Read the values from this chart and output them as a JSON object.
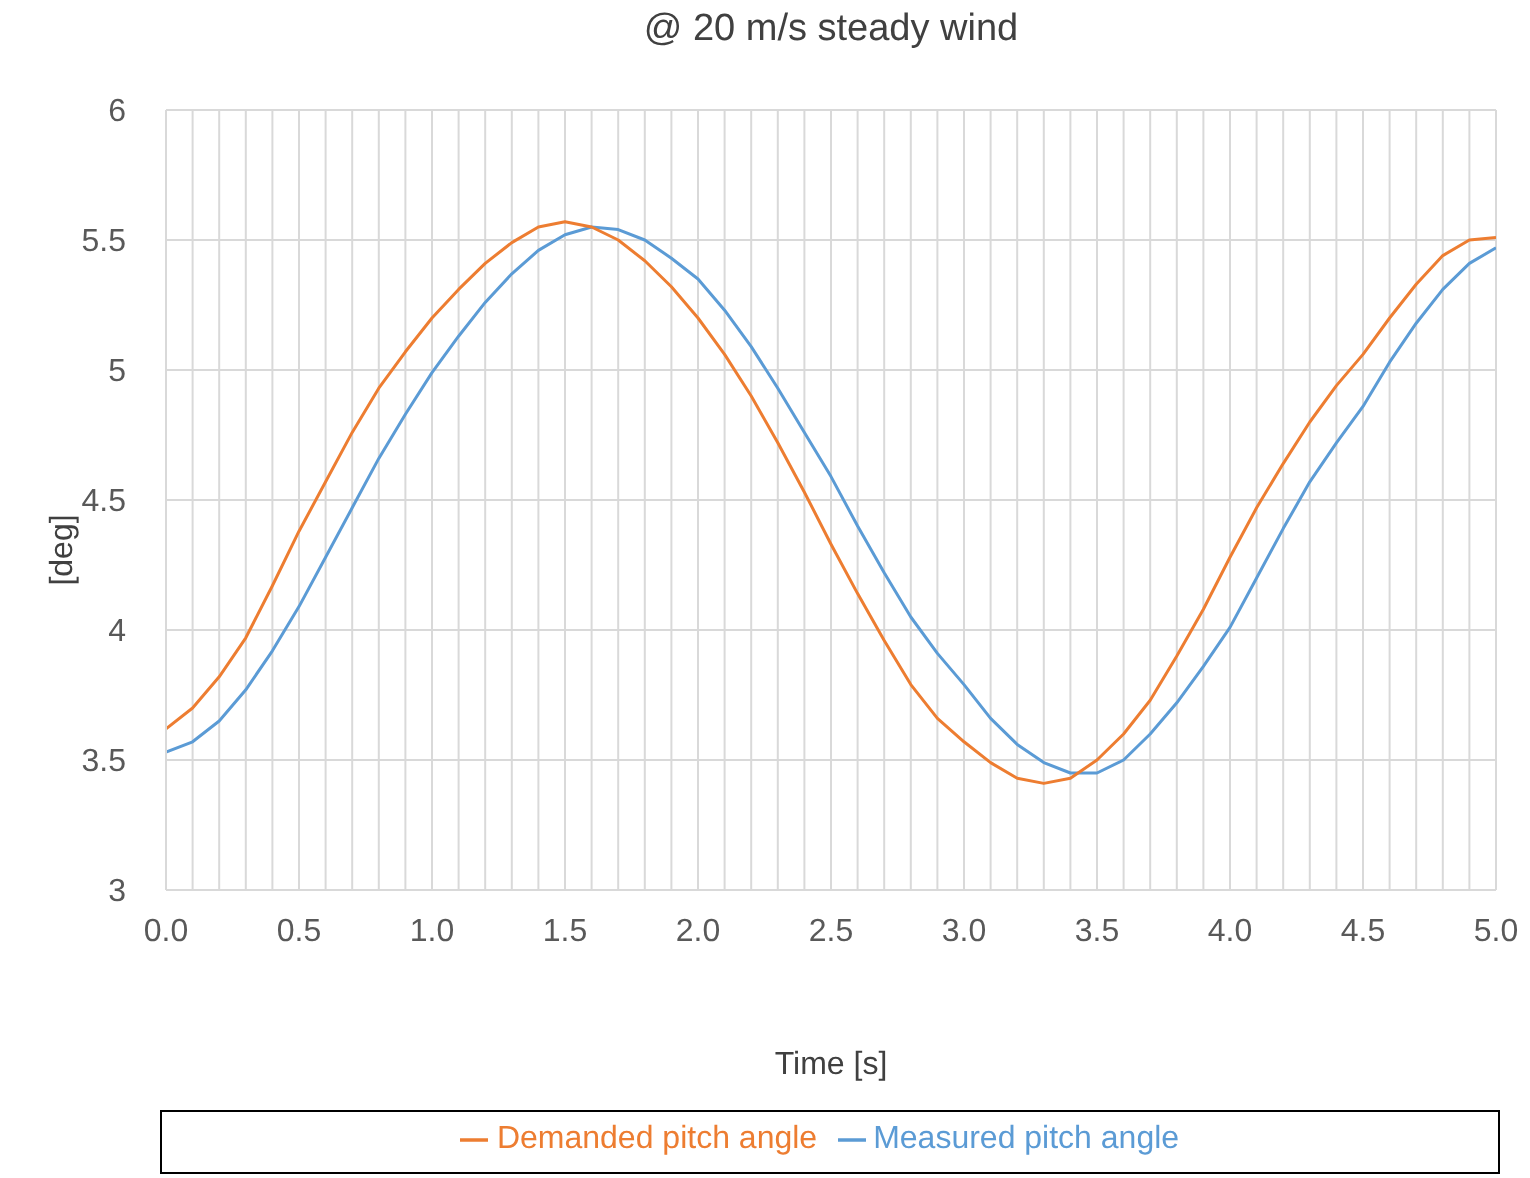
{
  "chart_data": {
    "type": "line",
    "title": "@ 20 m/s steady wind",
    "xlabel": "Time [s]",
    "ylabel": "[deg]",
    "x": [
      0,
      0.1,
      0.2,
      0.3,
      0.4,
      0.5,
      0.6,
      0.7,
      0.8,
      0.9,
      1.0,
      1.1,
      1.2,
      1.3,
      1.4,
      1.5,
      1.6,
      1.7,
      1.8,
      1.9,
      2.0,
      2.1,
      2.2,
      2.3,
      2.4,
      2.5,
      2.6,
      2.7,
      2.8,
      2.9,
      3.0,
      3.1,
      3.2,
      3.3,
      3.4,
      3.5,
      3.6,
      3.7,
      3.8,
      3.9,
      4.0,
      4.1,
      4.2,
      4.3,
      4.4,
      4.5,
      4.6,
      4.7,
      4.8,
      4.9,
      5.0
    ],
    "series": [
      {
        "name": "Measured pitch angle",
        "color": "#5b9bd5",
        "values": [
          3.53,
          3.57,
          3.65,
          3.77,
          3.92,
          4.09,
          4.28,
          4.47,
          4.66,
          4.83,
          4.99,
          5.13,
          5.26,
          5.37,
          5.46,
          5.52,
          5.55,
          5.54,
          5.5,
          5.43,
          5.35,
          5.23,
          5.09,
          4.93,
          4.76,
          4.59,
          4.4,
          4.22,
          4.05,
          3.91,
          3.79,
          3.66,
          3.56,
          3.49,
          3.45,
          3.45,
          3.5,
          3.6,
          3.72,
          3.86,
          4.01,
          4.2,
          4.39,
          4.57,
          4.72,
          4.86,
          5.03,
          5.18,
          5.31,
          5.41,
          5.47
        ]
      },
      {
        "name": "Demanded pitch angle",
        "color": "#ed7d31",
        "values": [
          3.62,
          3.7,
          3.82,
          3.97,
          4.17,
          4.38,
          4.57,
          4.76,
          4.93,
          5.07,
          5.2,
          5.31,
          5.41,
          5.49,
          5.55,
          5.57,
          5.55,
          5.5,
          5.42,
          5.32,
          5.2,
          5.06,
          4.9,
          4.72,
          4.53,
          4.33,
          4.14,
          3.96,
          3.79,
          3.66,
          3.57,
          3.49,
          3.43,
          3.41,
          3.43,
          3.5,
          3.6,
          3.73,
          3.9,
          4.08,
          4.28,
          4.47,
          4.64,
          4.8,
          4.94,
          5.06,
          5.2,
          5.33,
          5.44,
          5.5,
          5.51
        ]
      }
    ],
    "xlim": [
      0,
      5
    ],
    "xticks": [
      {
        "value": 0,
        "label": "0.0"
      },
      {
        "value": 0.1,
        "label": null
      },
      {
        "value": 0.2,
        "label": null
      },
      {
        "value": 0.3,
        "label": null
      },
      {
        "value": 0.4,
        "label": null
      },
      {
        "value": 0.5,
        "label": "0.5"
      },
      {
        "value": 0.6,
        "label": null
      },
      {
        "value": 0.7,
        "label": null
      },
      {
        "value": 0.8,
        "label": null
      },
      {
        "value": 0.9,
        "label": null
      },
      {
        "value": 1,
        "label": "1.0"
      },
      {
        "value": 1.1,
        "label": null
      },
      {
        "value": 1.2,
        "label": null
      },
      {
        "value": 1.3,
        "label": null
      },
      {
        "value": 1.4,
        "label": null
      },
      {
        "value": 1.5,
        "label": "1.5"
      },
      {
        "value": 1.6,
        "label": null
      },
      {
        "value": 1.7,
        "label": null
      },
      {
        "value": 1.8,
        "label": null
      },
      {
        "value": 1.9,
        "label": null
      },
      {
        "value": 2,
        "label": "2.0"
      },
      {
        "value": 2.1,
        "label": null
      },
      {
        "value": 2.2,
        "label": null
      },
      {
        "value": 2.3,
        "label": null
      },
      {
        "value": 2.4,
        "label": null
      },
      {
        "value": 2.5,
        "label": "2.5"
      },
      {
        "value": 2.6,
        "label": null
      },
      {
        "value": 2.7,
        "label": null
      },
      {
        "value": 2.8,
        "label": null
      },
      {
        "value": 2.9,
        "label": null
      },
      {
        "value": 3,
        "label": "3.0"
      },
      {
        "value": 3.1,
        "label": null
      },
      {
        "value": 3.2,
        "label": null
      },
      {
        "value": 3.3,
        "label": null
      },
      {
        "value": 3.4,
        "label": null
      },
      {
        "value": 3.5,
        "label": "3.5"
      },
      {
        "value": 3.6,
        "label": null
      },
      {
        "value": 3.7,
        "label": null
      },
      {
        "value": 3.8,
        "label": null
      },
      {
        "value": 3.9,
        "label": null
      },
      {
        "value": 4,
        "label": "4.0"
      },
      {
        "value": 4.1,
        "label": null
      },
      {
        "value": 4.2,
        "label": null
      },
      {
        "value": 4.3,
        "label": null
      },
      {
        "value": 4.4,
        "label": null
      },
      {
        "value": 4.5,
        "label": "4.5"
      },
      {
        "value": 4.6,
        "label": null
      },
      {
        "value": 4.7,
        "label": null
      },
      {
        "value": 4.8,
        "label": null
      },
      {
        "value": 4.9,
        "label": null
      },
      {
        "value": 5,
        "label": "5.0"
      }
    ],
    "ylim": [
      3,
      6
    ],
    "yticks": [
      3,
      3.5,
      4,
      4.5,
      5,
      5.5,
      6
    ],
    "grid": true,
    "legend": "bottom",
    "marker": "none",
    "line_style": "solid"
  }
}
